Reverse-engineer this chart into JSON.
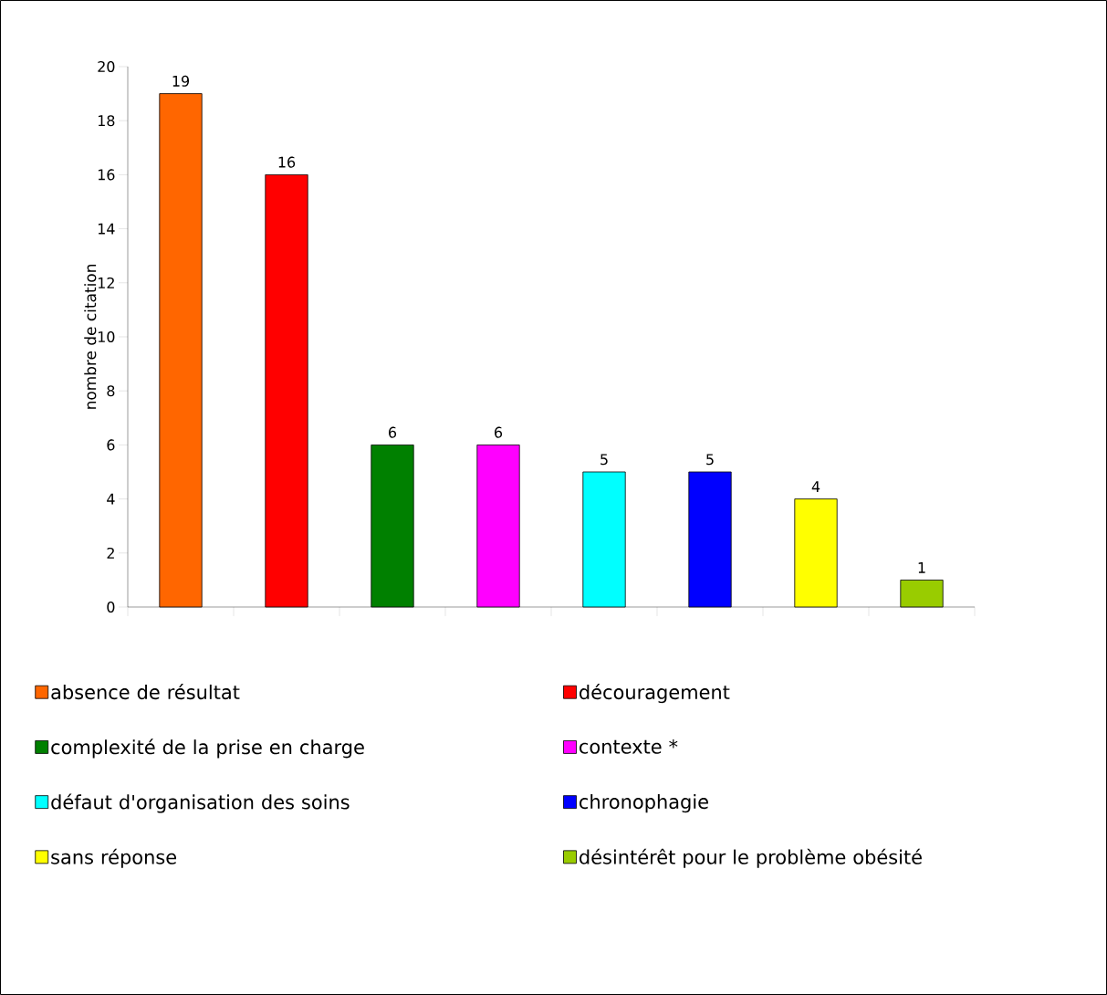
{
  "chart_data": {
    "type": "bar",
    "ylabel": "nombre de citation",
    "categories": [
      null,
      null,
      null,
      null,
      null,
      null,
      null,
      null
    ],
    "series": [
      {
        "name": "absence de résultat",
        "color": "#ff6600",
        "values": [
          19,
          null,
          null,
          null,
          null,
          null,
          null,
          null
        ]
      },
      {
        "name": "découragement",
        "color": "#ff0000",
        "values": [
          null,
          16,
          null,
          null,
          null,
          null,
          null,
          null
        ]
      },
      {
        "name": "complexité de la prise en charge",
        "color": "#008000",
        "values": [
          null,
          null,
          6,
          null,
          null,
          null,
          null,
          null
        ]
      },
      {
        "name": "contexte *",
        "color": "#ff00ff",
        "values": [
          null,
          null,
          null,
          6,
          null,
          null,
          null,
          null
        ]
      },
      {
        "name": "défaut d'organisation des soins",
        "color": "#00ffff",
        "values": [
          null,
          null,
          null,
          null,
          5,
          null,
          null,
          null
        ]
      },
      {
        "name": "chronophagie",
        "color": "#0000ff",
        "values": [
          null,
          null,
          null,
          null,
          null,
          5,
          null,
          null
        ]
      },
      {
        "name": "sans réponse",
        "color": "#ffff00",
        "values": [
          null,
          null,
          null,
          null,
          null,
          null,
          4,
          null
        ]
      },
      {
        "name": "désintérêt  pour le problème obésité",
        "color": "#99cc00",
        "values": [
          null,
          null,
          null,
          null,
          null,
          null,
          null,
          1
        ]
      }
    ],
    "ylim": [
      0,
      20
    ],
    "yticks": [
      0,
      2,
      4,
      6,
      8,
      10,
      12,
      14,
      16,
      18,
      20
    ],
    "data_labels": true,
    "legend": "bottom"
  }
}
